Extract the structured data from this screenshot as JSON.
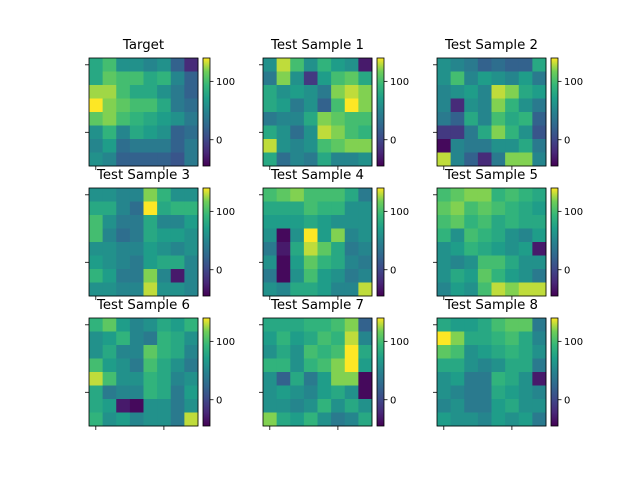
{
  "chart_data": {
    "type": "heatmap",
    "colormap": "viridis",
    "colorbar": {
      "vmin": -45,
      "vmax": 140,
      "ticks": [
        0,
        100
      ],
      "tick_labels": [
        "0",
        "100"
      ]
    },
    "tick_labels_visible": false,
    "panels": [
      {
        "title": "Target",
        "values": [
          [
            80,
            100,
            60,
            60,
            50,
            60,
            20,
            -20
          ],
          [
            80,
            110,
            100,
            100,
            80,
            90,
            50,
            20
          ],
          [
            125,
            125,
            100,
            80,
            80,
            60,
            40,
            20
          ],
          [
            140,
            120,
            110,
            100,
            100,
            80,
            40,
            30
          ],
          [
            110,
            120,
            100,
            90,
            80,
            70,
            60,
            40
          ],
          [
            60,
            90,
            50,
            80,
            70,
            60,
            20,
            30
          ],
          [
            50,
            70,
            30,
            40,
            40,
            40,
            20,
            40
          ],
          [
            60,
            50,
            20,
            20,
            20,
            20,
            10,
            40
          ]
        ]
      },
      {
        "title": "Test Sample 1",
        "values": [
          [
            60,
            130,
            100,
            60,
            90,
            70,
            60,
            -30
          ],
          [
            40,
            120,
            60,
            -10,
            70,
            100,
            110,
            80
          ],
          [
            80,
            60,
            70,
            60,
            40,
            120,
            130,
            120
          ],
          [
            80,
            70,
            40,
            60,
            20,
            100,
            140,
            120
          ],
          [
            40,
            50,
            50,
            80,
            120,
            110,
            100,
            100
          ],
          [
            80,
            60,
            30,
            60,
            130,
            120,
            100,
            90
          ],
          [
            130,
            60,
            50,
            60,
            100,
            110,
            120,
            120
          ],
          [
            80,
            30,
            50,
            40,
            80,
            50,
            50,
            60
          ]
        ]
      },
      {
        "title": "Test Sample 2",
        "values": [
          [
            60,
            50,
            40,
            20,
            30,
            20,
            20,
            80
          ],
          [
            60,
            100,
            50,
            70,
            60,
            50,
            70,
            40
          ],
          [
            50,
            60,
            70,
            50,
            130,
            120,
            80,
            70
          ],
          [
            50,
            -20,
            60,
            50,
            120,
            90,
            60,
            40
          ],
          [
            40,
            20,
            80,
            50,
            100,
            80,
            90,
            20
          ],
          [
            -10,
            -10,
            40,
            80,
            120,
            90,
            60,
            10
          ],
          [
            -40,
            50,
            40,
            40,
            60,
            60,
            80,
            40
          ],
          [
            130,
            50,
            20,
            -20,
            40,
            120,
            120,
            50
          ]
        ]
      },
      {
        "title": "Test Sample 3",
        "values": [
          [
            60,
            60,
            50,
            50,
            120,
            90,
            60,
            60
          ],
          [
            80,
            80,
            50,
            30,
            140,
            80,
            90,
            90
          ],
          [
            100,
            60,
            40,
            40,
            80,
            50,
            50,
            70
          ],
          [
            100,
            50,
            30,
            40,
            80,
            70,
            70,
            60
          ],
          [
            60,
            60,
            50,
            50,
            70,
            60,
            50,
            60
          ],
          [
            70,
            60,
            50,
            40,
            70,
            80,
            80,
            50
          ],
          [
            90,
            70,
            40,
            40,
            120,
            50,
            -30,
            50
          ],
          [
            60,
            60,
            50,
            50,
            130,
            60,
            60,
            50
          ]
        ]
      },
      {
        "title": "Test Sample 4",
        "values": [
          [
            100,
            110,
            120,
            100,
            100,
            100,
            80,
            40
          ],
          [
            80,
            80,
            80,
            100,
            90,
            90,
            60,
            60
          ],
          [
            70,
            70,
            70,
            80,
            70,
            60,
            60,
            60
          ],
          [
            60,
            -40,
            60,
            140,
            70,
            120,
            50,
            60
          ],
          [
            40,
            -30,
            80,
            130,
            110,
            80,
            40,
            50
          ],
          [
            60,
            -40,
            70,
            110,
            90,
            80,
            50,
            40
          ],
          [
            40,
            -40,
            60,
            100,
            70,
            60,
            40,
            50
          ],
          [
            60,
            50,
            80,
            80,
            70,
            50,
            50,
            130
          ]
        ]
      },
      {
        "title": "Test Sample 5",
        "values": [
          [
            100,
            110,
            120,
            120,
            90,
            100,
            90,
            80
          ],
          [
            110,
            120,
            100,
            110,
            100,
            90,
            80,
            70
          ],
          [
            100,
            110,
            90,
            100,
            80,
            90,
            80,
            80
          ],
          [
            90,
            60,
            100,
            90,
            80,
            60,
            50,
            70
          ],
          [
            60,
            70,
            90,
            80,
            70,
            60,
            70,
            -30
          ],
          [
            60,
            50,
            60,
            100,
            100,
            80,
            60,
            60
          ],
          [
            60,
            80,
            70,
            110,
            90,
            70,
            60,
            40
          ],
          [
            50,
            70,
            60,
            100,
            130,
            120,
            130,
            130
          ]
        ]
      },
      {
        "title": "Test Sample 6",
        "values": [
          [
            90,
            110,
            70,
            50,
            60,
            80,
            70,
            90
          ],
          [
            60,
            70,
            90,
            50,
            40,
            90,
            80,
            60
          ],
          [
            60,
            80,
            50,
            50,
            110,
            90,
            80,
            50
          ],
          [
            100,
            70,
            60,
            40,
            100,
            80,
            60,
            40
          ],
          [
            130,
            100,
            60,
            60,
            90,
            80,
            50,
            60
          ],
          [
            80,
            40,
            50,
            50,
            90,
            80,
            40,
            70
          ],
          [
            80,
            70,
            -30,
            -40,
            60,
            60,
            40,
            60
          ],
          [
            90,
            60,
            70,
            50,
            60,
            60,
            40,
            130
          ]
        ]
      },
      {
        "title": "Test Sample 7",
        "values": [
          [
            80,
            80,
            80,
            90,
            90,
            100,
            120,
            20
          ],
          [
            70,
            90,
            70,
            80,
            100,
            90,
            130,
            50
          ],
          [
            60,
            80,
            60,
            100,
            90,
            100,
            140,
            80
          ],
          [
            90,
            90,
            60,
            90,
            100,
            120,
            140,
            70
          ],
          [
            60,
            20,
            80,
            40,
            70,
            120,
            120,
            -40
          ],
          [
            60,
            70,
            60,
            50,
            70,
            80,
            60,
            -40
          ],
          [
            60,
            60,
            50,
            60,
            90,
            60,
            80,
            60
          ],
          [
            120,
            80,
            70,
            90,
            60,
            40,
            50,
            80
          ]
        ]
      },
      {
        "title": "Test Sample 8",
        "values": [
          [
            80,
            70,
            70,
            80,
            100,
            110,
            110,
            40
          ],
          [
            140,
            120,
            80,
            80,
            90,
            100,
            80,
            50
          ],
          [
            110,
            100,
            60,
            70,
            80,
            90,
            80,
            60
          ],
          [
            80,
            80,
            60,
            50,
            60,
            80,
            80,
            40
          ],
          [
            60,
            70,
            40,
            40,
            90,
            80,
            60,
            -30
          ],
          [
            60,
            50,
            40,
            40,
            80,
            70,
            60,
            50
          ],
          [
            50,
            60,
            40,
            40,
            70,
            80,
            60,
            60
          ],
          [
            70,
            60,
            60,
            50,
            70,
            60,
            70,
            40
          ]
        ]
      }
    ]
  }
}
